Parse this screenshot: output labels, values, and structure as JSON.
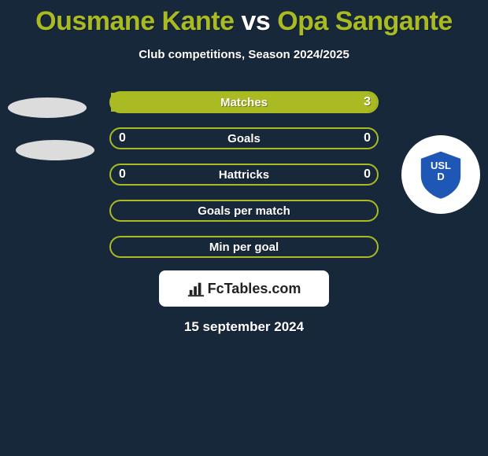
{
  "background_color": "#18283b",
  "title": {
    "player1": "Ousmane Kante",
    "vs": " vs ",
    "player2": "Opa Sangante",
    "color1": "#a9ba23",
    "color_vs": "#ffffff",
    "color2": "#a9ba23",
    "fontsize": 34
  },
  "subtitle": "Club competitions, Season 2024/2025",
  "player1_badge": {
    "present": false
  },
  "player2_badge": {
    "present": true,
    "name": "usld-dunkerque-logo",
    "shape_color_primary": "#1f57b7",
    "shape_color_accent": "#ffffff"
  },
  "bars": {
    "border_color": "#a9ba23",
    "fill_color_left": "#a9ba23",
    "fill_color_right": "#a9ba23",
    "label_color": "#ffffff",
    "value_color": "#ffffff",
    "rows": [
      {
        "label": "Matches",
        "left": "",
        "right": "3",
        "fill_left_pct": 0,
        "fill_right_pct": 100
      },
      {
        "label": "Goals",
        "left": "0",
        "right": "0",
        "fill_left_pct": 0,
        "fill_right_pct": 0
      },
      {
        "label": "Hattricks",
        "left": "0",
        "right": "0",
        "fill_left_pct": 0,
        "fill_right_pct": 0
      },
      {
        "label": "Goals per match",
        "left": "",
        "right": "",
        "fill_left_pct": 0,
        "fill_right_pct": 0
      },
      {
        "label": "Min per goal",
        "left": "",
        "right": "",
        "fill_left_pct": 0,
        "fill_right_pct": 0
      }
    ]
  },
  "watermark": {
    "text": "FcTables.com"
  },
  "date": "15 september 2024"
}
